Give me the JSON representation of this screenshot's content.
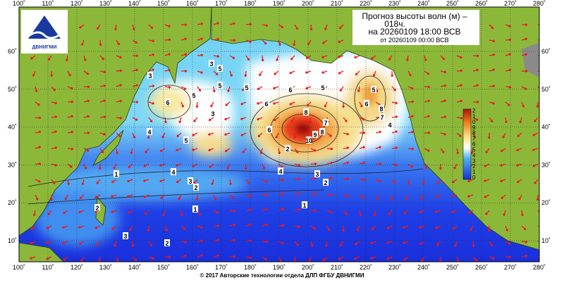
{
  "header": {
    "title_lines": [
      "Прогноз высоты волн (м) –",
      "018ч.",
      "на 20260109 18:00 ВСВ",
      "от 20260109 00:00 ВСВ"
    ],
    "logo": "ДВНИГМИ"
  },
  "map": {
    "longitudes": [
      {
        "value": 100,
        "label": "100˚"
      },
      {
        "value": 110,
        "label": "110˚"
      },
      {
        "value": 120,
        "label": "120˚"
      },
      {
        "value": 130,
        "label": "130˚"
      },
      {
        "value": 140,
        "label": "140˚"
      },
      {
        "value": 150,
        "label": "150˚"
      },
      {
        "value": 160,
        "label": "160˚"
      },
      {
        "value": 170,
        "label": "170˚"
      },
      {
        "value": 180,
        "label": "180˚"
      },
      {
        "value": 190,
        "label": "190˚"
      },
      {
        "value": 200,
        "label": "200˚"
      },
      {
        "value": 210,
        "label": "210˚"
      },
      {
        "value": 220,
        "label": "220˚"
      },
      {
        "value": 230,
        "label": "230˚"
      },
      {
        "value": 240,
        "label": "240˚"
      },
      {
        "value": 250,
        "label": "250˚"
      },
      {
        "value": 260,
        "label": "260˚"
      },
      {
        "value": 270,
        "label": "270˚"
      },
      {
        "value": 280,
        "label": "280˚"
      }
    ],
    "latitudes": [
      {
        "value": 10,
        "label": "10˚"
      },
      {
        "value": 20,
        "label": "20˚"
      },
      {
        "value": 30,
        "label": "30˚"
      },
      {
        "value": 40,
        "label": "40˚"
      },
      {
        "value": 50,
        "label": "50˚"
      },
      {
        "value": 60,
        "label": "60˚"
      }
    ],
    "contour_labels": [
      "3",
      "3",
      "5",
      "6",
      "3",
      "5",
      "5",
      "6",
      "5",
      "4",
      "3",
      "2",
      "2",
      "1",
      "2",
      "3",
      "2",
      "1",
      "6",
      "8",
      "7",
      "10",
      "9",
      "8",
      "4",
      "3",
      "2",
      "4",
      "5",
      "6",
      "8",
      "7",
      "5",
      "6",
      "5",
      "4",
      "1"
    ],
    "colorbar_labels": [
      "2",
      "1",
      "0",
      "9",
      "8",
      "7",
      "6",
      "5",
      "4",
      "3",
      "2",
      "1",
      "0"
    ]
  },
  "footer": "© 2017 Авторские технологии отдела ДЛП ФГБУ ДВНИГМИ"
}
